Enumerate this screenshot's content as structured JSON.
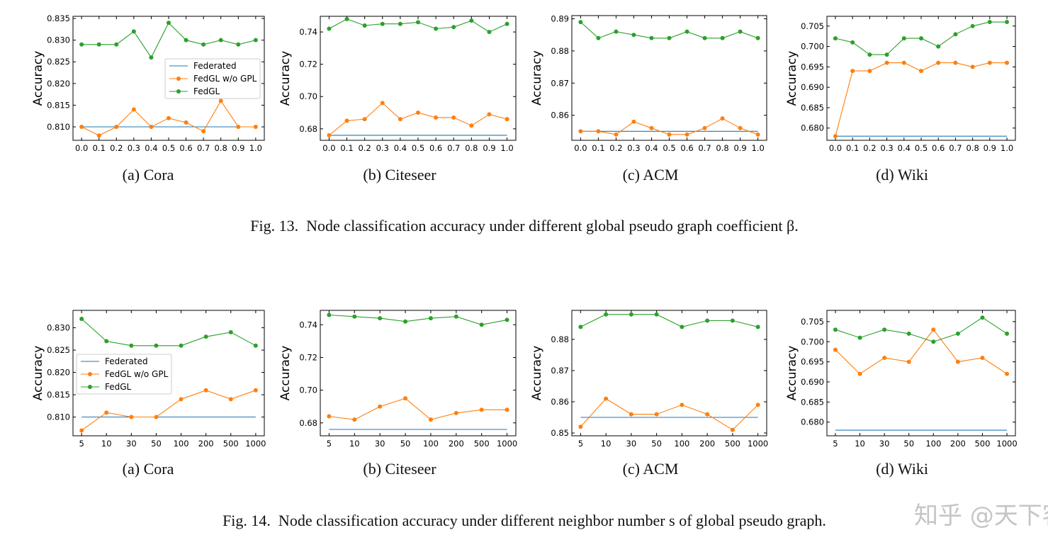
{
  "colors": {
    "Federated": "#1f77b4",
    "FedGL w/o GPL": "#ff7f0e",
    "FedGL": "#2ca02c"
  },
  "figures": [
    {
      "caption_prefix": "Fig. 13.",
      "caption": "Node classification accuracy under different global pseudo graph coefficient β."
    },
    {
      "caption_prefix": "Fig. 14.",
      "caption": "Node classification accuracy under different neighbor number s of global pseudo graph."
    }
  ],
  "watermark": "知乎 @天下客",
  "chart_data": [
    {
      "type": "line",
      "subcaption": "(a) Cora",
      "ylabel": "Accuracy",
      "categories": [
        "0.0",
        "0.1",
        "0.2",
        "0.3",
        "0.4",
        "0.5",
        "0.6",
        "0.7",
        "0.8",
        "0.9",
        "1.0"
      ],
      "yticks": [
        "0.810",
        "0.815",
        "0.820",
        "0.825",
        "0.830",
        "0.835"
      ],
      "ylim": [
        0.8069,
        0.8355
      ],
      "legend": "center-right",
      "series": [
        {
          "name": "Federated",
          "values": [
            0.81,
            0.81,
            0.81,
            0.81,
            0.81,
            0.81,
            0.81,
            0.81,
            0.81,
            0.81,
            0.81
          ],
          "markers": false
        },
        {
          "name": "FedGL w/o GPL",
          "values": [
            0.81,
            0.808,
            0.81,
            0.814,
            0.81,
            0.812,
            0.811,
            0.809,
            0.816,
            0.81,
            0.81
          ],
          "markers": true
        },
        {
          "name": "FedGL",
          "values": [
            0.829,
            0.829,
            0.829,
            0.832,
            0.826,
            0.834,
            0.83,
            0.829,
            0.83,
            0.829,
            0.83
          ],
          "markers": true
        }
      ]
    },
    {
      "type": "line",
      "subcaption": "(b) Citeseer",
      "ylabel": "Accuracy",
      "categories": [
        "0.0",
        "0.1",
        "0.2",
        "0.3",
        "0.4",
        "0.5",
        "0.6",
        "0.7",
        "0.8",
        "0.9",
        "1.0"
      ],
      "yticks": [
        "0.68",
        "0.70",
        "0.72",
        "0.74"
      ],
      "ylim": [
        0.6729,
        0.7497
      ],
      "series": [
        {
          "name": "Federated",
          "values": [
            0.676,
            0.676,
            0.676,
            0.676,
            0.676,
            0.676,
            0.676,
            0.676,
            0.676,
            0.676,
            0.676
          ],
          "markers": false
        },
        {
          "name": "FedGL w/o GPL",
          "values": [
            0.676,
            0.685,
            0.686,
            0.696,
            0.686,
            0.69,
            0.687,
            0.687,
            0.682,
            0.689,
            0.686
          ],
          "markers": true
        },
        {
          "name": "FedGL",
          "values": [
            0.742,
            0.748,
            0.744,
            0.745,
            0.745,
            0.746,
            0.742,
            0.743,
            0.747,
            0.74,
            0.745
          ],
          "markers": true
        }
      ]
    },
    {
      "type": "line",
      "subcaption": "(c) ACM",
      "ylabel": "Accuracy",
      "categories": [
        "0.0",
        "0.1",
        "0.2",
        "0.3",
        "0.4",
        "0.5",
        "0.6",
        "0.7",
        "0.8",
        "0.9",
        "1.0"
      ],
      "yticks": [
        "0.86",
        "0.87",
        "0.88",
        "0.89"
      ],
      "ylim": [
        0.8522,
        0.891
      ],
      "series": [
        {
          "name": "Federated",
          "values": [
            0.855,
            0.855,
            0.855,
            0.855,
            0.855,
            0.855,
            0.855,
            0.855,
            0.855,
            0.855,
            0.855
          ],
          "markers": false
        },
        {
          "name": "FedGL w/o GPL",
          "values": [
            0.855,
            0.855,
            0.854,
            0.858,
            0.856,
            0.854,
            0.854,
            0.856,
            0.859,
            0.856,
            0.854
          ],
          "markers": true
        },
        {
          "name": "FedGL",
          "values": [
            0.889,
            0.884,
            0.886,
            0.885,
            0.884,
            0.884,
            0.886,
            0.884,
            0.884,
            0.886,
            0.884
          ],
          "markers": true
        }
      ]
    },
    {
      "type": "line",
      "subcaption": "(d) Wiki",
      "ylabel": "Accuracy",
      "categories": [
        "0.0",
        "0.1",
        "0.2",
        "0.3",
        "0.4",
        "0.5",
        "0.6",
        "0.7",
        "0.8",
        "0.9",
        "1.0"
      ],
      "yticks": [
        "0.680",
        "0.685",
        "0.690",
        "0.695",
        "0.700",
        "0.705"
      ],
      "ylim": [
        0.677,
        0.7074
      ],
      "series": [
        {
          "name": "Federated",
          "values": [
            0.678,
            0.678,
            0.678,
            0.678,
            0.678,
            0.678,
            0.678,
            0.678,
            0.678,
            0.678,
            0.678
          ],
          "markers": false
        },
        {
          "name": "FedGL w/o GPL",
          "values": [
            0.678,
            0.694,
            0.694,
            0.696,
            0.696,
            0.694,
            0.696,
            0.696,
            0.695,
            0.696,
            0.696
          ],
          "markers": true
        },
        {
          "name": "FedGL",
          "values": [
            0.702,
            0.701,
            0.698,
            0.698,
            0.702,
            0.702,
            0.7,
            0.703,
            0.705,
            0.706,
            0.706
          ],
          "markers": true
        }
      ]
    },
    {
      "type": "line",
      "subcaption": "(a) Cora",
      "ylabel": "Accuracy",
      "categories": [
        "5",
        "10",
        "30",
        "50",
        "100",
        "200",
        "500",
        "1000"
      ],
      "yticks": [
        "0.810",
        "0.815",
        "0.820",
        "0.825",
        "0.830"
      ],
      "ylim": [
        0.8058,
        0.8339
      ],
      "legend": "center-left",
      "series": [
        {
          "name": "Federated",
          "values": [
            0.81,
            0.81,
            0.81,
            0.81,
            0.81,
            0.81,
            0.81,
            0.81
          ],
          "markers": false
        },
        {
          "name": "FedGL w/o GPL",
          "values": [
            0.807,
            0.811,
            0.81,
            0.81,
            0.814,
            0.816,
            0.814,
            0.816
          ],
          "markers": true
        },
        {
          "name": "FedGL",
          "values": [
            0.832,
            0.827,
            0.826,
            0.826,
            0.826,
            0.828,
            0.829,
            0.826
          ],
          "markers": true
        }
      ]
    },
    {
      "type": "line",
      "subcaption": "(b) Citeseer",
      "ylabel": "Accuracy",
      "categories": [
        "5",
        "10",
        "30",
        "50",
        "100",
        "200",
        "500",
        "1000"
      ],
      "yticks": [
        "0.68",
        "0.70",
        "0.72",
        "0.74"
      ],
      "ylim": [
        0.6721,
        0.7488
      ],
      "series": [
        {
          "name": "Federated",
          "values": [
            0.676,
            0.676,
            0.676,
            0.676,
            0.676,
            0.676,
            0.676,
            0.676
          ],
          "markers": false
        },
        {
          "name": "FedGL w/o GPL",
          "values": [
            0.684,
            0.682,
            0.69,
            0.695,
            0.682,
            0.686,
            0.688,
            0.688
          ],
          "markers": true
        },
        {
          "name": "FedGL",
          "values": [
            0.746,
            0.745,
            0.744,
            0.742,
            0.744,
            0.745,
            0.74,
            0.743
          ],
          "markers": true
        }
      ]
    },
    {
      "type": "line",
      "subcaption": "(c) ACM",
      "ylabel": "Accuracy",
      "categories": [
        "5",
        "10",
        "30",
        "50",
        "100",
        "200",
        "500",
        "1000"
      ],
      "yticks": [
        "0.85",
        "0.86",
        "0.87",
        "0.88"
      ],
      "ylim": [
        0.8491,
        0.8893
      ],
      "series": [
        {
          "name": "Federated",
          "values": [
            0.855,
            0.855,
            0.855,
            0.855,
            0.855,
            0.855,
            0.855,
            0.855
          ],
          "markers": false
        },
        {
          "name": "FedGL w/o GPL",
          "values": [
            0.852,
            0.861,
            0.856,
            0.856,
            0.859,
            0.856,
            0.851,
            0.859
          ],
          "markers": true
        },
        {
          "name": "FedGL",
          "values": [
            0.884,
            0.888,
            0.888,
            0.888,
            0.884,
            0.886,
            0.886,
            0.884
          ],
          "markers": true
        }
      ]
    },
    {
      "type": "line",
      "subcaption": "(d) Wiki",
      "ylabel": "Accuracy",
      "categories": [
        "5",
        "10",
        "30",
        "50",
        "100",
        "200",
        "500",
        "1000"
      ],
      "yticks": [
        "0.680",
        "0.685",
        "0.690",
        "0.695",
        "0.700",
        "0.705"
      ],
      "ylim": [
        0.6766,
        0.7078
      ],
      "series": [
        {
          "name": "Federated",
          "values": [
            0.678,
            0.678,
            0.678,
            0.678,
            0.678,
            0.678,
            0.678,
            0.678
          ],
          "markers": false
        },
        {
          "name": "FedGL w/o GPL",
          "values": [
            0.698,
            0.692,
            0.696,
            0.695,
            0.703,
            0.695,
            0.696,
            0.692
          ],
          "markers": true
        },
        {
          "name": "FedGL",
          "values": [
            0.703,
            0.701,
            0.703,
            0.702,
            0.7,
            0.702,
            0.706,
            0.702
          ],
          "markers": true
        }
      ]
    }
  ]
}
